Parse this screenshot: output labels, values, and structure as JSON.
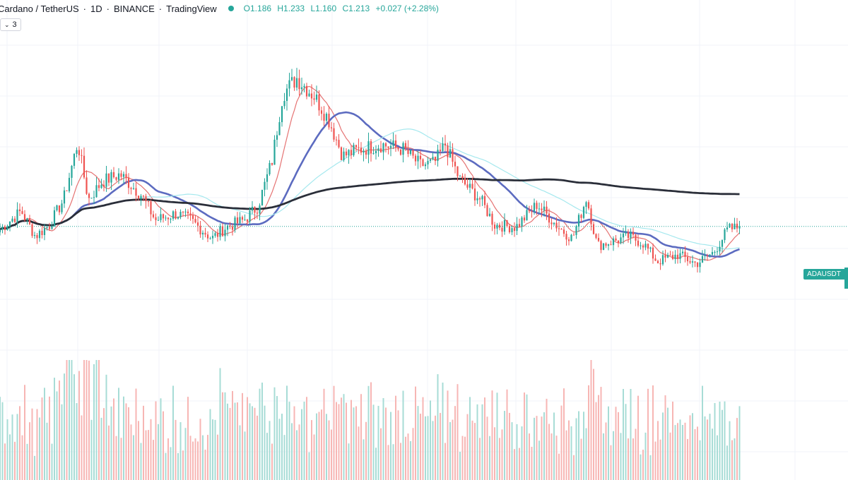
{
  "header": {
    "title": "Cardano / TetherUS",
    "interval": "1D",
    "exchange": "BINANCE",
    "source": "TradingView",
    "ohlc": {
      "o": "O1.186",
      "h": "H1.233",
      "l": "L1.160",
      "c": "C1.213",
      "chg": "+0.027 (+2.28%)"
    }
  },
  "indicators_toggle": {
    "count": "3",
    "icon": "chevron-down-icon"
  },
  "price_label": "ADAUSDT",
  "colors": {
    "up": "#26a69a",
    "down": "#ef5350",
    "up_volume": "#a7dcd6",
    "down_volume": "#f7b6b4",
    "ma_fast": "#e57373",
    "ma_mid": "#5c6bc0",
    "ma_light": "#a5e8ee",
    "ma_slow": "#2a2e39",
    "grid": "#f0f3fa",
    "price_line": "#26a69a"
  },
  "chart_data": {
    "type": "line",
    "symbol": "ADAUSDT",
    "interval": "1D",
    "grid": true,
    "last_close": 1.213,
    "price_keypoints": [
      [
        0,
        1.2
      ],
      [
        30,
        1.28
      ],
      [
        50,
        1.17
      ],
      [
        70,
        1.22
      ],
      [
        90,
        1.33
      ],
      [
        110,
        1.58
      ],
      [
        125,
        1.33
      ],
      [
        145,
        1.41
      ],
      [
        170,
        1.44
      ],
      [
        200,
        1.35
      ],
      [
        220,
        1.24
      ],
      [
        250,
        1.27
      ],
      [
        270,
        1.24
      ],
      [
        300,
        1.16
      ],
      [
        320,
        1.21
      ],
      [
        345,
        1.24
      ],
      [
        365,
        1.3
      ],
      [
        385,
        1.5
      ],
      [
        400,
        1.79
      ],
      [
        420,
        1.86
      ],
      [
        445,
        1.78
      ],
      [
        465,
        1.68
      ],
      [
        485,
        1.52
      ],
      [
        510,
        1.55
      ],
      [
        540,
        1.57
      ],
      [
        570,
        1.55
      ],
      [
        595,
        1.48
      ],
      [
        615,
        1.49
      ],
      [
        630,
        1.57
      ],
      [
        650,
        1.42
      ],
      [
        680,
        1.33
      ],
      [
        700,
        1.22
      ],
      [
        730,
        1.21
      ],
      [
        760,
        1.31
      ],
      [
        790,
        1.21
      ],
      [
        810,
        1.16
      ],
      [
        830,
        1.34
      ],
      [
        845,
        1.13
      ],
      [
        870,
        1.15
      ],
      [
        890,
        1.17
      ],
      [
        910,
        1.14
      ],
      [
        930,
        1.06
      ],
      [
        960,
        1.09
      ],
      [
        985,
        1.05
      ],
      [
        1010,
        1.1
      ],
      [
        1030,
        1.2
      ],
      [
        1048,
        1.21
      ]
    ],
    "moving_averages": [
      {
        "period": 10,
        "color": "#e57373"
      },
      {
        "period": 30,
        "color": "#5c6bc0"
      },
      {
        "period": 55,
        "color": "#a5e8ee"
      },
      {
        "period": 200,
        "color": "#2a2e39"
      }
    ]
  }
}
